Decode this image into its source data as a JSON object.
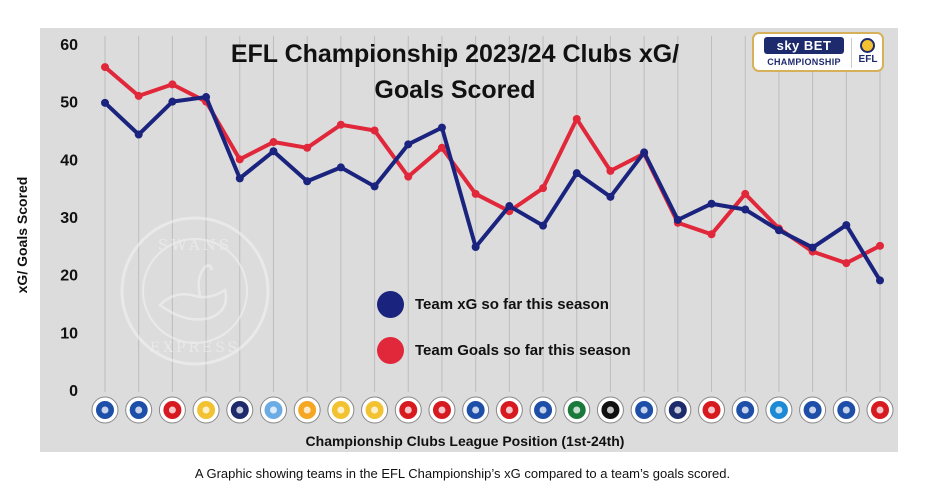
{
  "caption": "A Graphic showing teams in the EFL Championship’s xG compared to a team’s goals scored.",
  "logo": {
    "sky_bet": "sky BET",
    "championship": "CHAMPIONSHIP",
    "efl": "EFL"
  },
  "watermark": {
    "top": "SWANS",
    "bottom": "EXPRESS"
  },
  "colors": {
    "background": "#dcdcdc",
    "gridline": "#bdbdbd",
    "xg_series": "#1a237e",
    "goals_series": "#e0283a"
  },
  "chart_data": {
    "type": "line",
    "title": "EFL Championship 2023/24 Clubs xG/ Goals Scored",
    "title_lines": [
      "EFL Championship 2023/24 Clubs xG/",
      "Goals Scored"
    ],
    "xlabel": "Championship Clubs League Position (1st-24th)",
    "ylabel": "xG/ Goals Scored",
    "ylim": [
      0,
      60
    ],
    "yticks": [
      0,
      10,
      20,
      30,
      40,
      50,
      60
    ],
    "grid": true,
    "legend_position": "center",
    "x": [
      1,
      2,
      3,
      4,
      5,
      6,
      7,
      8,
      9,
      10,
      11,
      12,
      13,
      14,
      15,
      16,
      17,
      18,
      19,
      20,
      21,
      22,
      23,
      24
    ],
    "x_tick_icons": [
      "club-crest-icon",
      "club-crest-icon",
      "club-crest-icon",
      "club-crest-icon",
      "club-crest-icon",
      "club-crest-icon",
      "club-crest-icon",
      "club-crest-icon",
      "club-crest-icon",
      "club-crest-icon",
      "club-crest-icon",
      "club-crest-icon",
      "club-crest-icon",
      "club-crest-icon",
      "club-crest-icon",
      "club-crest-icon",
      "club-crest-icon",
      "club-crest-icon",
      "club-crest-icon",
      "club-crest-icon",
      "club-crest-icon",
      "club-crest-icon",
      "club-crest-icon",
      "club-crest-icon"
    ],
    "x_tick_colors": [
      "#1d4ea8",
      "#1d4ea8",
      "#d71920",
      "#f2c230",
      "#1d2a6b",
      "#6cace4",
      "#f5a623",
      "#f2c230",
      "#f2c230",
      "#d71920",
      "#d71920",
      "#1d4ea8",
      "#d71920",
      "#1d4ea8",
      "#1a7a3c",
      "#111111",
      "#1d4ea8",
      "#1d2a6b",
      "#d71920",
      "#1d4ea8",
      "#1d8ad6",
      "#1d4ea8",
      "#1d4ea8",
      "#d71920"
    ],
    "series": [
      {
        "name": "Team xG so far this season",
        "color": "#1a237e",
        "values": [
          49.8,
          44.3,
          50.0,
          50.8,
          36.7,
          41.4,
          36.2,
          38.6,
          35.3,
          42.6,
          45.5,
          24.8,
          31.9,
          28.5,
          37.6,
          33.5,
          41.2,
          29.5,
          32.3,
          31.3,
          27.7,
          24.7,
          28.6,
          19.0
        ]
      },
      {
        "name": "Team Goals so far this season",
        "color": "#e0283a",
        "values": [
          56,
          51,
          53,
          50,
          40,
          43,
          42,
          46,
          45,
          37,
          42,
          34,
          31,
          35,
          47,
          38,
          41,
          29,
          27,
          34,
          28,
          24,
          22,
          25
        ]
      }
    ]
  }
}
